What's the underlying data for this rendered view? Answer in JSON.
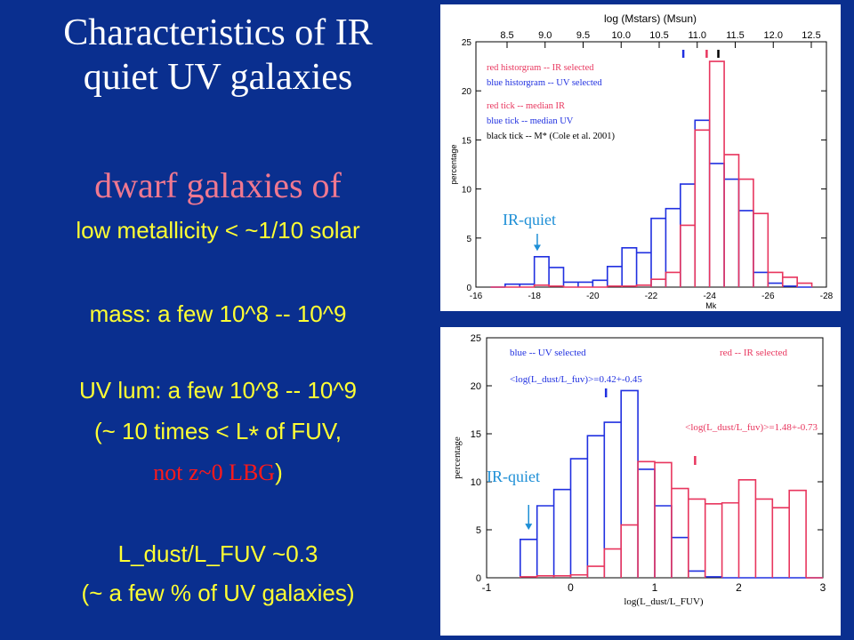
{
  "slide": {
    "title_line1": "Characteristics of IR",
    "title_line2": "quiet UV galaxies",
    "dwarf_heading": "dwarf galaxies of",
    "metallicity": "low metallicity < ~1/10 solar",
    "mass": "mass: a few 10^8 -- 10^9",
    "uv_lum": "UV lum: a few 10^8 -- 10^9",
    "lstar_prefix": "(~ 10 times < L",
    "lstar_symbol": "*",
    "lstar_suffix": " of FUV,",
    "lbg_note": "not z~0 LBG",
    "lbg_close": ")",
    "dust_ratio": "L_dust/L_FUV ~0.3",
    "uv_fraction": "(~ a few % of UV galaxies)"
  },
  "colors": {
    "background": "#0a2f8f",
    "yellow_text": "#ffff33",
    "pink_text": "#f07890",
    "red_text": "#ff1a1a",
    "red_series": "#e8365e",
    "blue_series": "#2030e0",
    "annotation": "#1e8fd6"
  },
  "chart_data": [
    {
      "type": "bar",
      "subtype": "histogram",
      "xlabel": "Mk",
      "top_axis_label": "log (Mstars) (Msun)",
      "ylabel": "percentage",
      "xlim": [
        -16,
        -28
      ],
      "ylim": [
        0,
        25
      ],
      "x_ticks": [
        "-16",
        "-18",
        "-20",
        "-22",
        "-24",
        "-26",
        "-28"
      ],
      "x_tick_values": [
        -16,
        -18,
        -20,
        -22,
        -24,
        -26,
        -28
      ],
      "top_ticks": [
        "8.5",
        "9.0",
        "9.5",
        "10.0",
        "10.5",
        "11.0",
        "11.5",
        "12.0",
        "12.5"
      ],
      "top_tick_values": [
        8.5,
        9.0,
        9.5,
        10.0,
        10.5,
        11.0,
        11.5,
        12.0,
        12.5
      ],
      "y_ticks": [
        "0",
        "5",
        "10",
        "15",
        "20",
        "25"
      ],
      "y_tick_values": [
        0,
        5,
        10,
        15,
        20,
        25
      ],
      "bin_edges": [
        -16.5,
        -17,
        -17.5,
        -18,
        -18.5,
        -19,
        -19.5,
        -20,
        -20.5,
        -21,
        -21.5,
        -22,
        -22.5,
        -23,
        -23.5,
        -24,
        -24.5,
        -25,
        -25.5,
        -26,
        -26.5,
        -27,
        -27.5
      ],
      "series": [
        {
          "name": "blue historgram -- UV selected",
          "color": "#2030e0",
          "values": [
            0,
            0.3,
            0.3,
            3.1,
            2.0,
            0.5,
            0.5,
            0.7,
            2.1,
            4.0,
            3.5,
            7.0,
            8.0,
            10.5,
            17.0,
            12.6,
            11.0,
            7.8,
            1.5,
            0.4,
            0.1,
            0,
            0
          ]
        },
        {
          "name": "red historgram -- IR selected",
          "color": "#e8365e",
          "values": [
            0,
            0,
            0,
            0.2,
            0.1,
            0,
            0,
            0,
            0.1,
            0.1,
            0.2,
            0.8,
            1.5,
            6.3,
            16.0,
            23.0,
            13.5,
            11.0,
            7.5,
            1.5,
            1.0,
            0.4,
            0.1
          ]
        }
      ],
      "legend": [
        {
          "text": "red historgram -- IR selected",
          "color": "#e8365e"
        },
        {
          "text": "blue historgram -- UV selected",
          "color": "#2030e0"
        },
        {
          "text": "red tick -- median IR",
          "color": "#e8365e"
        },
        {
          "text": "blue tick -- median UV",
          "color": "#2030e0"
        },
        {
          "text": "black tick -- M* (Cole et al. 2001)",
          "color": "#000000"
        }
      ],
      "median_ticks": [
        {
          "color": "#2030e0",
          "mk": -23.1
        },
        {
          "color": "#e8365e",
          "mk": -23.9
        },
        {
          "color": "#000000",
          "mk": -24.3
        }
      ],
      "annotation": {
        "text": "IR-quiet",
        "arrow_mk": -18.1,
        "arrow_value": 3.5
      }
    },
    {
      "type": "bar",
      "subtype": "histogram",
      "xlabel": "log(L_dust/L_FUV)",
      "ylabel": "percentage",
      "xlim": [
        -1,
        3
      ],
      "ylim": [
        0,
        25
      ],
      "x_ticks": [
        "-1",
        "0",
        "1",
        "2",
        "3"
      ],
      "x_tick_values": [
        -1,
        0,
        1,
        2,
        3
      ],
      "y_ticks": [
        "0",
        "5",
        "10",
        "15",
        "20",
        "25"
      ],
      "y_tick_values": [
        0,
        5,
        10,
        15,
        20,
        25
      ],
      "bin_edges": [
        -0.6,
        -0.4,
        -0.2,
        0.0,
        0.2,
        0.4,
        0.6,
        0.8,
        1.0,
        1.2,
        1.4,
        1.6,
        1.8,
        2.0,
        2.2,
        2.4,
        2.6,
        2.8,
        3.0
      ],
      "series": [
        {
          "name": "blue -- UV selected",
          "color": "#2030e0",
          "values": [
            4.0,
            7.5,
            9.2,
            12.4,
            14.8,
            16.2,
            19.5,
            11.3,
            7.5,
            4.2,
            0.7,
            0.1,
            0,
            0,
            0,
            0,
            0,
            0
          ]
        },
        {
          "name": "red -- IR selected",
          "color": "#e8365e",
          "values": [
            0.1,
            0.2,
            0.2,
            0.3,
            1.2,
            3.0,
            5.5,
            12.1,
            12.0,
            9.3,
            8.2,
            7.7,
            7.8,
            10.2,
            8.2,
            7.3,
            9.1,
            0
          ]
        }
      ],
      "legend": [
        {
          "text": "blue -- UV selected",
          "color": "#2030e0"
        },
        {
          "text": "red -- IR selected",
          "color": "#e8365e"
        }
      ],
      "mean_labels": [
        {
          "text": "<log(L_dust/L_fuv)>=0.42+-0.45",
          "color": "#2030e0",
          "tick_x": 0.42
        },
        {
          "text": "<log(L_dust/L_fuv)>=1.48+-0.73",
          "color": "#e8365e",
          "tick_x": 1.48
        }
      ],
      "annotation": {
        "text": "IR-quiet",
        "arrow_x": -0.5,
        "arrow_value": 4.8
      }
    }
  ]
}
